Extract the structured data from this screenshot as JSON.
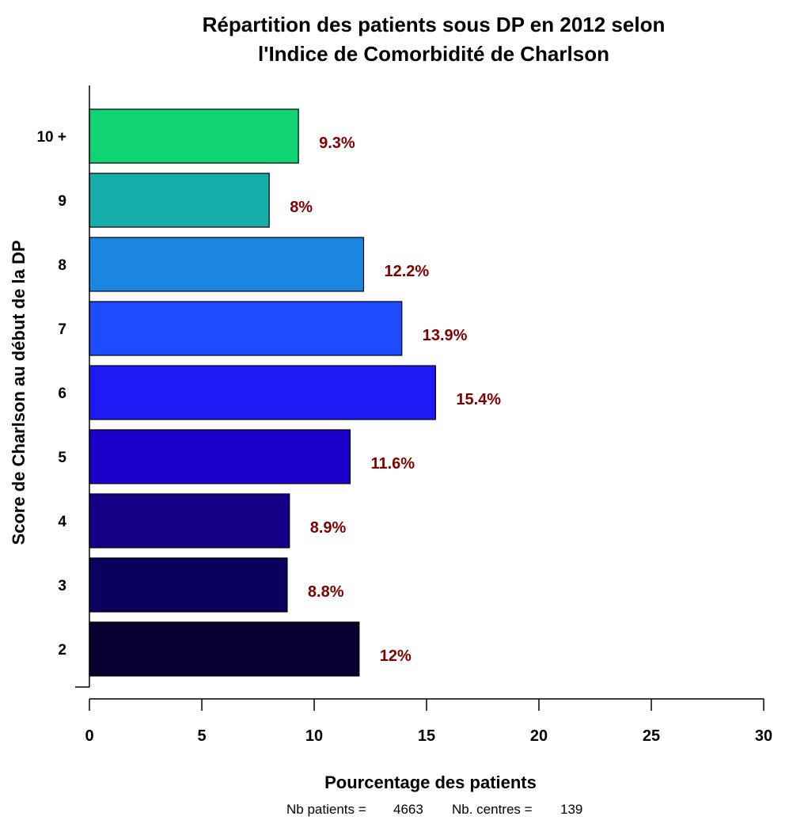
{
  "chart_data": {
    "type": "bar",
    "orientation": "horizontal",
    "title_line1": "Répartition des patients sous DP en 2012 selon",
    "title_line2": "l'Indice de Comorbidité de Charlson",
    "xlabel": "Pourcentage des patients",
    "ylabel": "Score de Charlson au début de la DP",
    "xlim": [
      0,
      30
    ],
    "xticks": [
      0,
      5,
      10,
      15,
      20,
      25,
      30
    ],
    "grid": false,
    "categories": [
      "2",
      "3",
      "4",
      "5",
      "6",
      "7",
      "8",
      "9",
      "10 +"
    ],
    "values": [
      12,
      8.8,
      8.9,
      11.6,
      15.4,
      13.9,
      12.2,
      8,
      9.3
    ],
    "value_labels": [
      "12%",
      "8.8%",
      "8.9%",
      "11.6%",
      "15.4%",
      "13.9%",
      "12.2%",
      "8%",
      "9.3%"
    ],
    "bar_colors": [
      "#07002e",
      "#0c005e",
      "#140086",
      "#1a00c8",
      "#1e18f4",
      "#1f4bff",
      "#1a86e2",
      "#16ada8",
      "#10d474"
    ],
    "value_label_color": "#800000",
    "footnote": {
      "patients_label": "Nb patients =",
      "patients_value": "4663",
      "centres_label": "Nb. centres =",
      "centres_value": "139"
    }
  }
}
